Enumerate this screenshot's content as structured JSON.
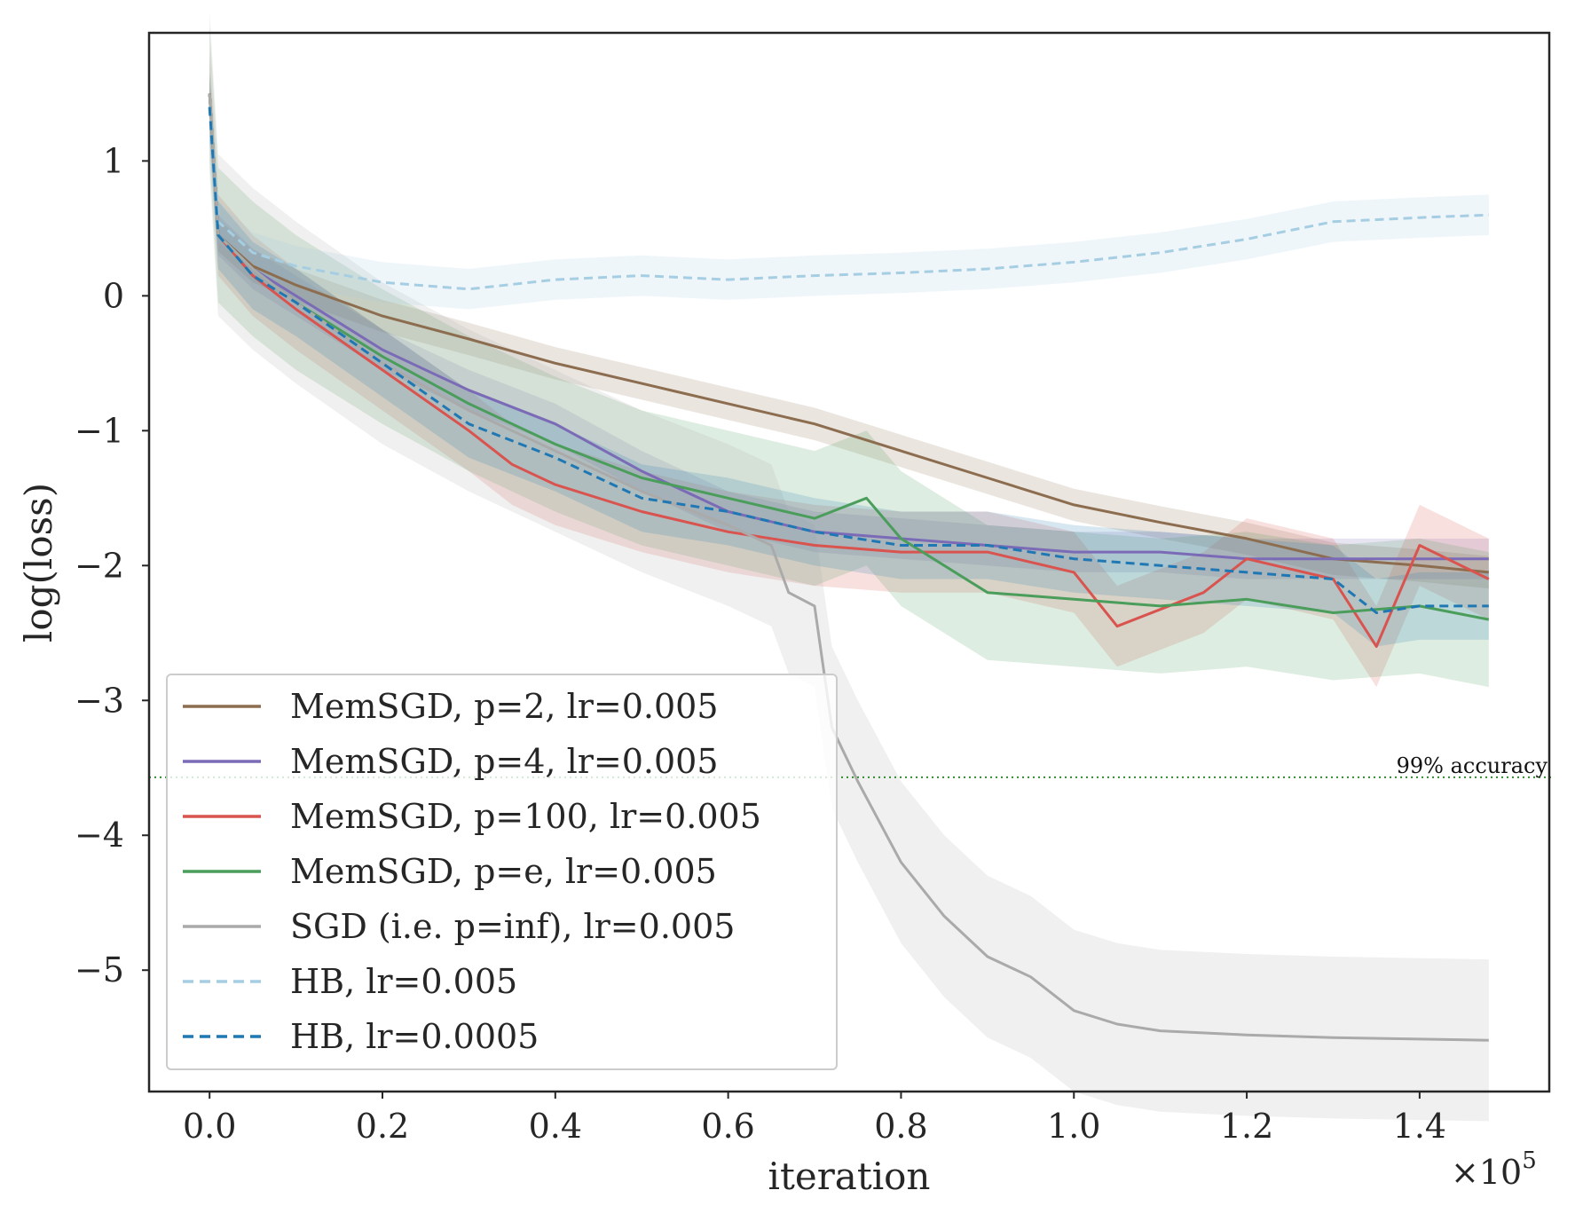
{
  "chart_data": {
    "type": "line",
    "title": "",
    "xlabel": "iteration",
    "ylabel": "log(loss)",
    "x_multiplier_label": "×10",
    "x_multiplier_exponent": "5",
    "xlim": [
      -0.07,
      1.55
    ],
    "ylim": [
      -5.9,
      1.95
    ],
    "x_ticks": [
      {
        "value": 0.0,
        "label": "0.0"
      },
      {
        "value": 0.2,
        "label": "0.2"
      },
      {
        "value": 0.4,
        "label": "0.4"
      },
      {
        "value": 0.6,
        "label": "0.6"
      },
      {
        "value": 0.8,
        "label": "0.8"
      },
      {
        "value": 1.0,
        "label": "1.0"
      },
      {
        "value": 1.2,
        "label": "1.2"
      },
      {
        "value": 1.4,
        "label": "1.4"
      }
    ],
    "y_ticks": [
      {
        "value": 1,
        "label": "1"
      },
      {
        "value": 0,
        "label": "0"
      },
      {
        "value": -1,
        "label": "−1"
      },
      {
        "value": -2,
        "label": "−2"
      },
      {
        "value": -3,
        "label": "−3"
      },
      {
        "value": -4,
        "label": "−4"
      },
      {
        "value": -5,
        "label": "−5"
      }
    ],
    "grid": false,
    "legend_position": "bottom-left",
    "reference_line": {
      "y": -3.57,
      "label": "99% accuracy",
      "color": "#2e8b2e"
    },
    "series": [
      {
        "name": "MemSGD, p=2, lr=0.005",
        "color": "#8c6d4f",
        "dash": false,
        "band": 0.12,
        "points": [
          [
            0,
            1.5
          ],
          [
            0.01,
            0.45
          ],
          [
            0.05,
            0.22
          ],
          [
            0.1,
            0.08
          ],
          [
            0.2,
            -0.15
          ],
          [
            0.3,
            -0.32
          ],
          [
            0.4,
            -0.5
          ],
          [
            0.5,
            -0.65
          ],
          [
            0.6,
            -0.8
          ],
          [
            0.7,
            -0.95
          ],
          [
            0.8,
            -1.15
          ],
          [
            0.9,
            -1.35
          ],
          [
            1.0,
            -1.55
          ],
          [
            1.1,
            -1.68
          ],
          [
            1.2,
            -1.8
          ],
          [
            1.3,
            -1.95
          ],
          [
            1.4,
            -2.0
          ],
          [
            1.48,
            -2.05
          ]
        ]
      },
      {
        "name": "MemSGD, p=4, lr=0.005",
        "color": "#7b6bb7",
        "dash": false,
        "band": 0.15,
        "points": [
          [
            0,
            1.5
          ],
          [
            0.01,
            0.45
          ],
          [
            0.05,
            0.2
          ],
          [
            0.1,
            0.0
          ],
          [
            0.2,
            -0.4
          ],
          [
            0.3,
            -0.7
          ],
          [
            0.4,
            -0.95
          ],
          [
            0.5,
            -1.3
          ],
          [
            0.6,
            -1.6
          ],
          [
            0.7,
            -1.75
          ],
          [
            0.8,
            -1.8
          ],
          [
            0.9,
            -1.85
          ],
          [
            1.0,
            -1.9
          ],
          [
            1.1,
            -1.9
          ],
          [
            1.2,
            -1.95
          ],
          [
            1.3,
            -1.95
          ],
          [
            1.4,
            -1.95
          ],
          [
            1.48,
            -1.95
          ]
        ]
      },
      {
        "name": "MemSGD, p=100, lr=0.005",
        "color": "#d9534f",
        "dash": false,
        "band": 0.3,
        "points": [
          [
            0,
            1.5
          ],
          [
            0.01,
            0.45
          ],
          [
            0.05,
            0.15
          ],
          [
            0.1,
            -0.1
          ],
          [
            0.2,
            -0.55
          ],
          [
            0.3,
            -1.0
          ],
          [
            0.35,
            -1.25
          ],
          [
            0.4,
            -1.4
          ],
          [
            0.5,
            -1.6
          ],
          [
            0.6,
            -1.75
          ],
          [
            0.7,
            -1.85
          ],
          [
            0.8,
            -1.9
          ],
          [
            0.9,
            -1.9
          ],
          [
            1.0,
            -2.05
          ],
          [
            1.05,
            -2.45
          ],
          [
            1.15,
            -2.2
          ],
          [
            1.2,
            -1.95
          ],
          [
            1.3,
            -2.1
          ],
          [
            1.35,
            -2.6
          ],
          [
            1.4,
            -1.85
          ],
          [
            1.48,
            -2.1
          ]
        ]
      },
      {
        "name": "MemSGD, p=e, lr=0.005",
        "color": "#4a9d5b",
        "dash": false,
        "band": 0.5,
        "points": [
          [
            0,
            1.5
          ],
          [
            0.01,
            0.45
          ],
          [
            0.05,
            0.2
          ],
          [
            0.1,
            -0.05
          ],
          [
            0.2,
            -0.45
          ],
          [
            0.3,
            -0.8
          ],
          [
            0.35,
            -0.95
          ],
          [
            0.4,
            -1.1
          ],
          [
            0.5,
            -1.35
          ],
          [
            0.6,
            -1.5
          ],
          [
            0.7,
            -1.65
          ],
          [
            0.76,
            -1.5
          ],
          [
            0.8,
            -1.8
          ],
          [
            0.9,
            -2.2
          ],
          [
            1.0,
            -2.25
          ],
          [
            1.1,
            -2.3
          ],
          [
            1.2,
            -2.25
          ],
          [
            1.3,
            -2.35
          ],
          [
            1.4,
            -2.3
          ],
          [
            1.48,
            -2.4
          ]
        ]
      },
      {
        "name": "SGD (i.e. p=inf), lr=0.005",
        "color": "#aaaaaa",
        "dash": false,
        "band": 0.6,
        "points": [
          [
            0,
            1.5
          ],
          [
            0.01,
            0.45
          ],
          [
            0.05,
            0.2
          ],
          [
            0.1,
            -0.05
          ],
          [
            0.2,
            -0.5
          ],
          [
            0.3,
            -0.85
          ],
          [
            0.4,
            -1.15
          ],
          [
            0.5,
            -1.45
          ],
          [
            0.6,
            -1.7
          ],
          [
            0.65,
            -1.85
          ],
          [
            0.67,
            -2.2
          ],
          [
            0.7,
            -2.3
          ],
          [
            0.72,
            -3.2
          ],
          [
            0.75,
            -3.6
          ],
          [
            0.8,
            -4.2
          ],
          [
            0.85,
            -4.6
          ],
          [
            0.9,
            -4.9
          ],
          [
            0.95,
            -5.05
          ],
          [
            1.0,
            -5.3
          ],
          [
            1.05,
            -5.4
          ],
          [
            1.1,
            -5.45
          ],
          [
            1.2,
            -5.48
          ],
          [
            1.3,
            -5.5
          ],
          [
            1.48,
            -5.52
          ]
        ]
      },
      {
        "name": "HB, lr=0.005",
        "color": "#a6cee3",
        "dash": true,
        "band": 0.15,
        "points": [
          [
            0,
            1.4
          ],
          [
            0.01,
            0.55
          ],
          [
            0.05,
            0.32
          ],
          [
            0.1,
            0.22
          ],
          [
            0.2,
            0.1
          ],
          [
            0.3,
            0.05
          ],
          [
            0.4,
            0.12
          ],
          [
            0.5,
            0.15
          ],
          [
            0.6,
            0.12
          ],
          [
            0.7,
            0.15
          ],
          [
            0.8,
            0.17
          ],
          [
            0.9,
            0.2
          ],
          [
            1.0,
            0.25
          ],
          [
            1.1,
            0.32
          ],
          [
            1.2,
            0.42
          ],
          [
            1.3,
            0.55
          ],
          [
            1.4,
            0.58
          ],
          [
            1.48,
            0.6
          ]
        ]
      },
      {
        "name": "HB, lr=0.0005",
        "color": "#1f78b4",
        "dash": true,
        "band": 0.25,
        "points": [
          [
            0,
            1.4
          ],
          [
            0.01,
            0.45
          ],
          [
            0.05,
            0.15
          ],
          [
            0.1,
            -0.05
          ],
          [
            0.2,
            -0.5
          ],
          [
            0.3,
            -0.95
          ],
          [
            0.4,
            -1.2
          ],
          [
            0.5,
            -1.5
          ],
          [
            0.6,
            -1.6
          ],
          [
            0.7,
            -1.75
          ],
          [
            0.8,
            -1.85
          ],
          [
            0.9,
            -1.85
          ],
          [
            1.0,
            -1.95
          ],
          [
            1.1,
            -2.0
          ],
          [
            1.2,
            -2.05
          ],
          [
            1.3,
            -2.1
          ],
          [
            1.35,
            -2.35
          ],
          [
            1.4,
            -2.3
          ],
          [
            1.48,
            -2.3
          ]
        ]
      }
    ]
  }
}
